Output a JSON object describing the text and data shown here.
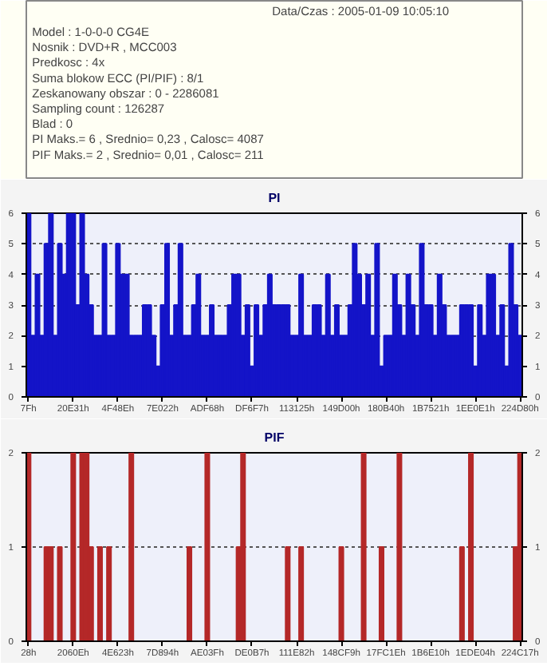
{
  "chart_data": [
    {
      "type": "bar",
      "title": "PI",
      "annotations": [
        "Data/Czas : 2005-01-09 10:05:10",
        "Model : 1-0-0-0 CG4E",
        "Nosnik : DVD+R , MCC003",
        "Predkosc : 4x",
        "Suma blokow ECC (PI/PIF) : 8/1",
        "Zeskanowany obszar : 0 - 2286081",
        "Sampling count : 126287",
        "Blad : 0",
        "PI Maks.= 6 , Srednio= 0,23 , Calosc= 4087",
        "PIF Maks.= 2 , Srednio= 0,01 , Calosc= 211"
      ],
      "categories": [
        "7Fh",
        null,
        null,
        null,
        null,
        null,
        null,
        null,
        null,
        null,
        "20E31h",
        null,
        null,
        null,
        null,
        null,
        null,
        null,
        null,
        null,
        "4F48Eh",
        null,
        null,
        null,
        null,
        null,
        null,
        null,
        null,
        null,
        "7E022h",
        null,
        null,
        null,
        null,
        null,
        null,
        null,
        null,
        null,
        "ADF68h",
        null,
        null,
        null,
        null,
        null,
        null,
        null,
        null,
        null,
        "DF6F7h",
        null,
        null,
        null,
        null,
        null,
        null,
        null,
        null,
        null,
        "113125h",
        null,
        null,
        null,
        null,
        null,
        null,
        null,
        null,
        null,
        "149D00h",
        null,
        null,
        null,
        null,
        null,
        null,
        null,
        null,
        null,
        "180B40h",
        null,
        null,
        null,
        null,
        null,
        null,
        null,
        null,
        null,
        "1B7521h",
        null,
        null,
        null,
        null,
        null,
        null,
        null,
        null,
        null,
        "1EE0E1h",
        null,
        null,
        null,
        null,
        null,
        null,
        null,
        null,
        null,
        "224D80h"
      ],
      "values": [
        6,
        2,
        4,
        2,
        5,
        6,
        2,
        5,
        4,
        6,
        6,
        3,
        6,
        4,
        3,
        2,
        2,
        5,
        2,
        2,
        5,
        4,
        4,
        2,
        2,
        2,
        3,
        3,
        2,
        1,
        3,
        5,
        2,
        3,
        5,
        2,
        2,
        3,
        4,
        2,
        2,
        3,
        2,
        2,
        2,
        3,
        4,
        4,
        2,
        3,
        1,
        3,
        2,
        3,
        4,
        3,
        3,
        3,
        3,
        2,
        2,
        4,
        2,
        2,
        3,
        3,
        2,
        4,
        2,
        3,
        2,
        2,
        3,
        5,
        4,
        3,
        4,
        2,
        5,
        1,
        2,
        2,
        4,
        3,
        2,
        4,
        3,
        2,
        5,
        3,
        3,
        2,
        4,
        3,
        2,
        2,
        2,
        3,
        3,
        3,
        1,
        3,
        2,
        4,
        4,
        2,
        3,
        1,
        5,
        3,
        2
      ],
      "color": "#1414c8",
      "ylim": [
        0,
        6
      ],
      "yticks": [
        0,
        1,
        2,
        3,
        4,
        5,
        6
      ],
      "y2lim": [
        0,
        6
      ],
      "y2ticks": [
        0,
        1,
        2,
        3,
        4,
        5,
        6
      ],
      "grid": "y"
    },
    {
      "type": "bar",
      "title": "PIF",
      "categories": [
        "28h",
        null,
        null,
        null,
        null,
        null,
        null,
        null,
        null,
        null,
        "2060Eh",
        null,
        null,
        null,
        null,
        null,
        null,
        null,
        null,
        null,
        "4E623h",
        null,
        null,
        null,
        null,
        null,
        null,
        null,
        null,
        null,
        "7D894h",
        null,
        null,
        null,
        null,
        null,
        null,
        null,
        null,
        null,
        "AE03Fh",
        null,
        null,
        null,
        null,
        null,
        null,
        null,
        null,
        null,
        "DE0B7h",
        null,
        null,
        null,
        null,
        null,
        null,
        null,
        null,
        null,
        "111E82h",
        null,
        null,
        null,
        null,
        null,
        null,
        null,
        null,
        null,
        "148CF9h",
        null,
        null,
        null,
        null,
        null,
        null,
        null,
        null,
        null,
        "17FC1Eh",
        null,
        null,
        null,
        null,
        null,
        null,
        null,
        null,
        null,
        "1B6E10h",
        null,
        null,
        null,
        null,
        null,
        null,
        null,
        null,
        null,
        "1EDE04h",
        null,
        null,
        null,
        null,
        null,
        null,
        null,
        null,
        null,
        "224C17h"
      ],
      "values": [
        2,
        0,
        0,
        0,
        1,
        1,
        0,
        1,
        0,
        0,
        2,
        0,
        2,
        2,
        1,
        0,
        1,
        0,
        1,
        0,
        0,
        0,
        0,
        2,
        0,
        0,
        0,
        0,
        0,
        0,
        0,
        0,
        0,
        0,
        0,
        0,
        1,
        0,
        0,
        0,
        2,
        0,
        0,
        0,
        0,
        0,
        0,
        1,
        2,
        0,
        0,
        0,
        0,
        0,
        0,
        0,
        0,
        0,
        1,
        0,
        0,
        1,
        0,
        0,
        0,
        0,
        0,
        0,
        0,
        0,
        1,
        0,
        0,
        0,
        0,
        2,
        0,
        0,
        0,
        1,
        0,
        0,
        0,
        2,
        0,
        0,
        0,
        0,
        0,
        0,
        0,
        0,
        0,
        0,
        0,
        0,
        0,
        1,
        0,
        2,
        0,
        0,
        0,
        0,
        0,
        0,
        0,
        0,
        0,
        1,
        2
      ],
      "color": "#b42828",
      "ylim": [
        0,
        2
      ],
      "yticks": [
        0,
        1,
        2
      ],
      "y2lim": [
        0,
        2
      ],
      "y2ticks": [
        0,
        1,
        2
      ],
      "grid": "y"
    }
  ]
}
